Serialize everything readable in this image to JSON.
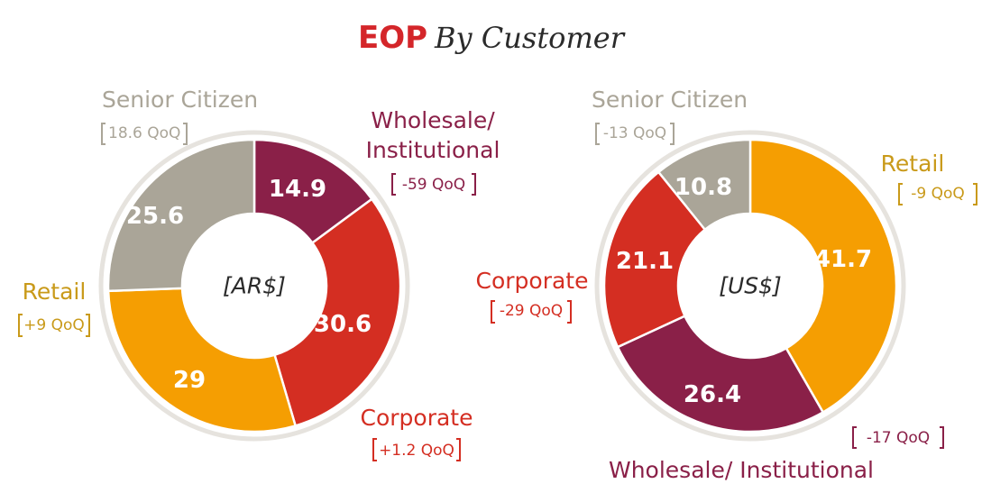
{
  "title": {
    "main": "EOP",
    "sub": "By Customer"
  },
  "colors": {
    "senior": "#aaa598",
    "wholesale": "#8a2048",
    "corporate": "#d42e22",
    "retail": "#f59e02",
    "ring": "#e6e3de",
    "text_dark": "#2b2b2b"
  },
  "chart_data": [
    {
      "type": "pie",
      "center_label": "[AR$]",
      "slices": [
        {
          "name": "Wholesale/ Institutional",
          "value": 14.9,
          "label": "14.9",
          "qoq": "-59 QoQ",
          "color": "#8a2048"
        },
        {
          "name": "Corporate",
          "value": 30.6,
          "label": "30.6",
          "qoq": "+1.2 QoQ",
          "color": "#d42e22"
        },
        {
          "name": "Retail",
          "value": 29,
          "label": "29",
          "qoq": "+9 QoQ",
          "color": "#f59e02"
        },
        {
          "name": "Senior Citizen",
          "value": 25.6,
          "label": "25.6",
          "qoq": "18.6 QoQ",
          "color": "#aaa598"
        }
      ]
    },
    {
      "type": "pie",
      "center_label": "[US$]",
      "slices": [
        {
          "name": "Retail",
          "value": 41.7,
          "label": "41.7",
          "qoq": "-9 QoQ",
          "color": "#f59e02"
        },
        {
          "name": "Wholesale/ Institutional",
          "value": 26.4,
          "label": "26.4",
          "qoq": "-17 QoQ",
          "color": "#8a2048"
        },
        {
          "name": "Corporate",
          "value": 21.1,
          "label": "21.1",
          "qoq": "-29 QoQ",
          "color": "#d42e22"
        },
        {
          "name": "Senior Citizen",
          "value": 10.8,
          "label": "10.8",
          "qoq": "-13 QoQ",
          "color": "#aaa598"
        }
      ]
    }
  ],
  "callouts": {
    "left": {
      "senior_name": "Senior Citizen",
      "senior_qoq": "18.6 QoQ",
      "wholesale_name_1": "Wholesale/",
      "wholesale_name_2": "Institutional",
      "wholesale_qoq": "-59 QoQ",
      "retail_name": "Retail",
      "retail_qoq": "+9 QoQ",
      "corporate_name": "Corporate",
      "corporate_qoq": "+1.2 QoQ"
    },
    "right": {
      "senior_name": "Senior Citizen",
      "senior_qoq": "-13 QoQ",
      "retail_name": "Retail",
      "retail_qoq": "-9 QoQ",
      "corporate_name": "Corporate",
      "corporate_qoq": "-29 QoQ",
      "wholesale_name": "Wholesale/ Institutional",
      "wholesale_qoq": "-17 QoQ"
    }
  }
}
